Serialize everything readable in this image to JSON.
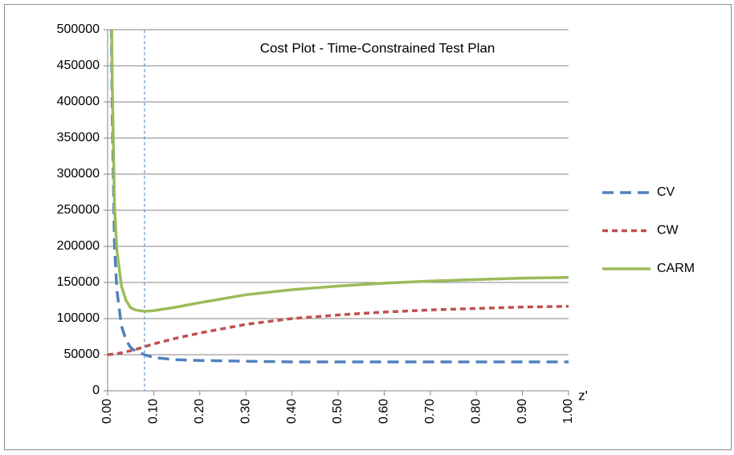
{
  "chart_data": {
    "type": "line",
    "title": "Cost Plot -  Time-Constrained Test Plan",
    "x_label": "z'",
    "x": [
      0,
      0.005,
      0.01,
      0.015,
      0.02,
      0.03,
      0.04,
      0.05,
      0.06,
      0.08,
      0.1,
      0.15,
      0.2,
      0.3,
      0.4,
      0.5,
      0.6,
      0.7,
      0.8,
      0.9,
      1.0
    ],
    "series": [
      {
        "name": "CV",
        "color": "#4f81bd",
        "dash": "14 8",
        "values": [
          null,
          700000,
          380000,
          200000,
          140000,
          90000,
          70000,
          60000,
          55000,
          50000,
          46000,
          43000,
          42000,
          41000,
          40000,
          40000,
          40000,
          40000,
          40000,
          40000,
          40000
        ]
      },
      {
        "name": "CW",
        "color": "#c0504d",
        "dash": "7 5",
        "values": [
          50000,
          50300,
          50700,
          51000,
          51500,
          52500,
          54000,
          55500,
          57000,
          61000,
          65000,
          73000,
          80000,
          92000,
          100000,
          105000,
          109000,
          112000,
          114000,
          116000,
          117000
        ]
      },
      {
        "name": "CARM",
        "color": "#9bbb59",
        "dash": "none",
        "values": [
          null,
          750000,
          430000,
          255000,
          195000,
          145000,
          125000,
          115000,
          112000,
          110000,
          111000,
          116000,
          122000,
          133000,
          140000,
          145000,
          149000,
          152000,
          154000,
          156000,
          157000
        ]
      }
    ],
    "vline": 0.08,
    "xlim": [
      0,
      1
    ],
    "xticks": [
      {
        "value": 0,
        "label": "0.00"
      },
      {
        "value": 0.1,
        "label": "0.10"
      },
      {
        "value": 0.2,
        "label": "0.20"
      },
      {
        "value": 0.3,
        "label": "0.30"
      },
      {
        "value": 0.4,
        "label": "0.40"
      },
      {
        "value": 0.5,
        "label": "0.50"
      },
      {
        "value": 0.6,
        "label": "0.60"
      },
      {
        "value": 0.7,
        "label": "0.70"
      },
      {
        "value": 0.8,
        "label": "0.80"
      },
      {
        "value": 0.9,
        "label": "0.90"
      },
      {
        "value": 1,
        "label": "1.00"
      }
    ],
    "ylim": [
      0,
      500000
    ],
    "yticks": [
      0,
      50000,
      100000,
      150000,
      200000,
      250000,
      300000,
      350000,
      400000,
      450000,
      500000
    ],
    "grid": true,
    "legend": "right"
  }
}
